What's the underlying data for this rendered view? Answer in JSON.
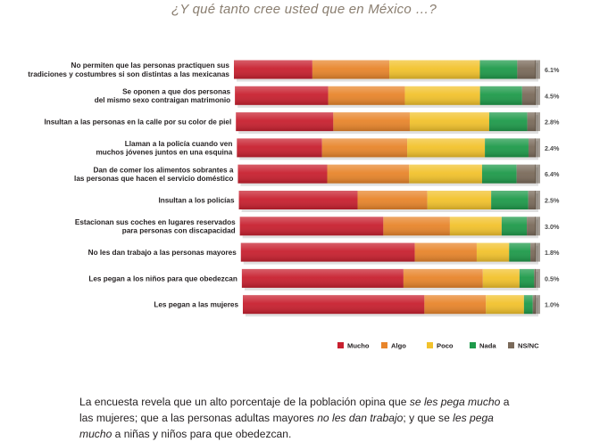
{
  "chart_data": {
    "type": "bar",
    "stacked": true,
    "orientation": "horizontal",
    "normalized": true,
    "title": "¿Y qué tanto cree usted que en México …?",
    "categories": [
      "No permiten que las personas practiquen sus\ntradiciones y costumbres si son distintas a las mexicanas",
      "Se oponen a que dos personas\ndel mismo sexo contraigan matrimonio",
      "Insultan a las personas en la calle por su color de piel",
      "Llaman a la policía cuando ven\nmuchos  jóvenes juntos en una esquina",
      "Dan de comer los alimentos sobrantes a\nlas personas que hacen el servicio doméstico",
      "Insultan a los policías",
      "Estacionan sus coches en lugares reservados\npara personas con discapacidad",
      "No les dan trabajo a las personas mayores",
      "Les pegan a los niños para que obedezcan",
      "Les pegan a las mujeres"
    ],
    "series": [
      {
        "name": "Mucho",
        "color": "#c8202f",
        "values": [
          26.0,
          31.0,
          32.5,
          28.5,
          30.0,
          40.0,
          48.5,
          59.0,
          55.0,
          62.0
        ]
      },
      {
        "name": "Algo",
        "color": "#e8852b",
        "values": [
          25.5,
          25.5,
          25.5,
          28.5,
          27.5,
          23.5,
          22.5,
          21.0,
          27.0,
          21.0
        ]
      },
      {
        "name": "Poco",
        "color": "#f2c22c",
        "values": [
          30.0,
          25.0,
          26.5,
          26.0,
          24.5,
          21.5,
          17.5,
          11.0,
          12.5,
          13.0
        ]
      },
      {
        "name": "Nada",
        "color": "#1e9a4a",
        "values": [
          12.4,
          14.0,
          12.7,
          14.6,
          11.6,
          12.5,
          8.5,
          7.2,
          5.0,
          3.0
        ]
      },
      {
        "name": "NS/NC",
        "color": "#7a6a5a",
        "values": [
          6.1,
          4.5,
          2.8,
          2.4,
          6.4,
          2.5,
          3.0,
          1.8,
          0.5,
          1.0
        ]
      }
    ],
    "nsnc_labels": [
      "6.1%",
      "4.5%",
      "2.8%",
      "2.4%",
      "6.4%",
      "2.5%",
      "3.0%",
      "1.8%",
      "0.5%",
      "1.0%"
    ],
    "xlim": [
      0,
      100
    ],
    "legend": [
      "Mucho",
      "Algo",
      "Poco",
      "Nada",
      "NS/NC"
    ],
    "legend_position": "bottom-right"
  },
  "caption": {
    "p1": "La encuesta revela que un alto porcentaje de la población opina que ",
    "i1": "se les pega mucho",
    "p2": " a las mujeres; que a las personas adultas mayores ",
    "i2": "no les dan trabajo",
    "p3": "; y que se ",
    "i3": "les pega mucho",
    "p4": " a niñas y niños para que obedezcan."
  }
}
